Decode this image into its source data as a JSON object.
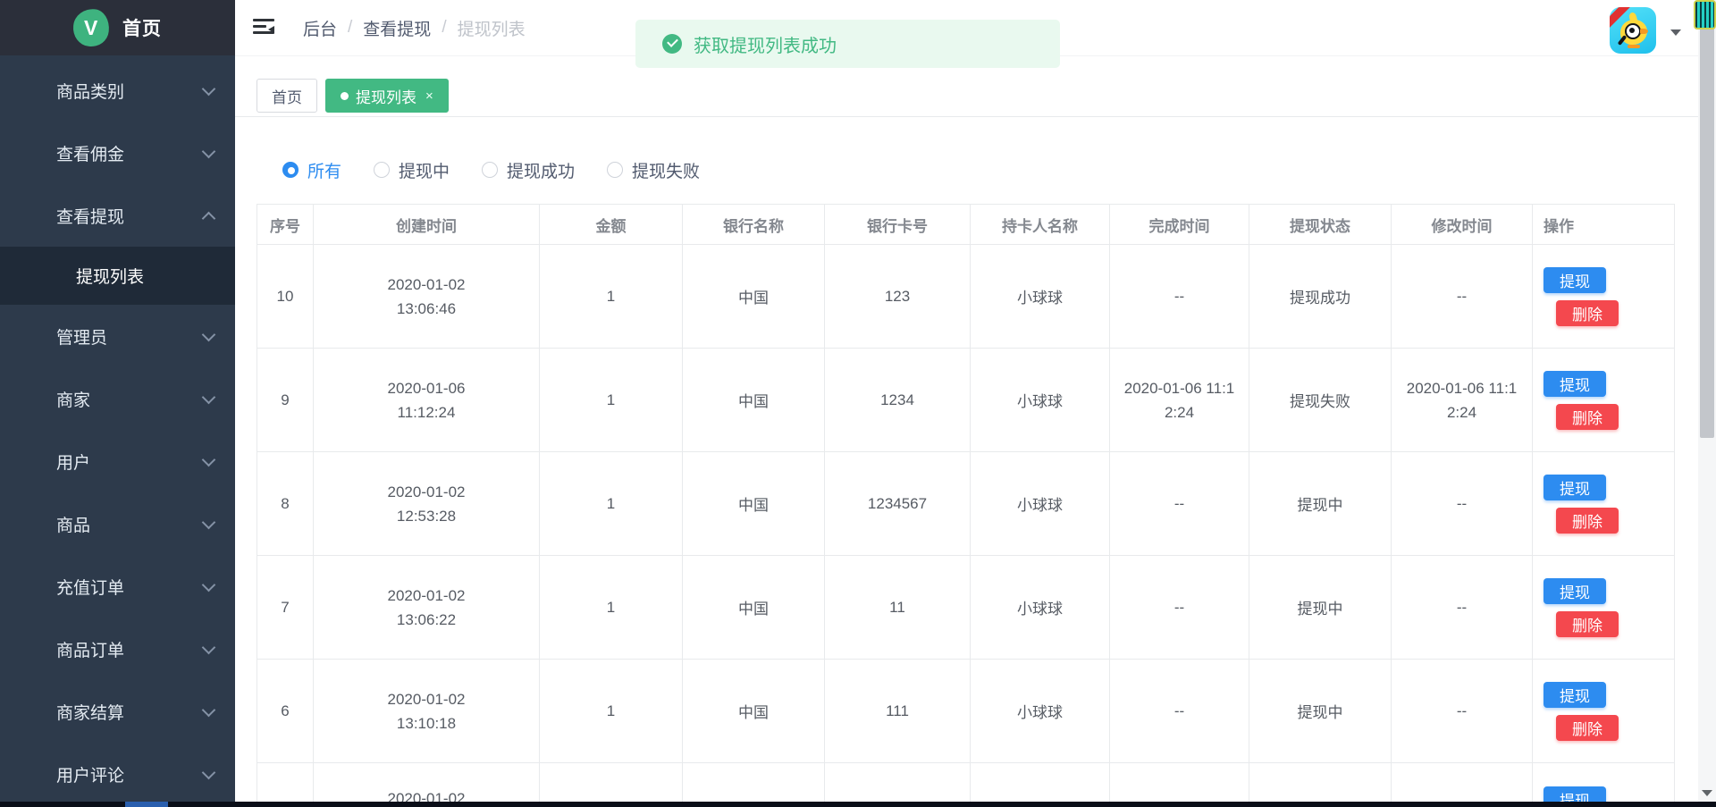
{
  "sidebar": {
    "logo_letter": "V",
    "logo_text": "首页",
    "menu": [
      {
        "label": "商品类别"
      },
      {
        "label": "查看佣金"
      },
      {
        "label": "查看提现"
      },
      {
        "label": "管理员"
      },
      {
        "label": "商家"
      },
      {
        "label": "用户"
      },
      {
        "label": "商品"
      },
      {
        "label": "充值订单"
      },
      {
        "label": "商品订单"
      },
      {
        "label": "商家结算"
      },
      {
        "label": "用户评论"
      }
    ],
    "active_submenu": "提现列表"
  },
  "header": {
    "breadcrumb": [
      "后台",
      "查看提现",
      "提现列表"
    ],
    "separator": "/"
  },
  "alert": {
    "message": "获取提现列表成功"
  },
  "tabs": [
    {
      "label": "首页",
      "active": false
    },
    {
      "label": "提现列表",
      "active": true,
      "close_glyph": "×"
    }
  ],
  "filters": [
    {
      "label": "所有",
      "selected": true
    },
    {
      "label": "提现中",
      "selected": false
    },
    {
      "label": "提现成功",
      "selected": false
    },
    {
      "label": "提现失败",
      "selected": false
    }
  ],
  "table": {
    "columns": [
      "序号",
      "创建时间",
      "金额",
      "银行名称",
      "银行卡号",
      "持卡人名称",
      "完成时间",
      "提现状态",
      "修改时间",
      "操作"
    ],
    "withdraw_label": "提现",
    "delete_label": "删除",
    "rows": [
      {
        "num": "10",
        "date": "2020-01-02",
        "time": "13:06:46",
        "amount": "1",
        "bank": "中国",
        "card": "123",
        "holder": "小球球",
        "finish": "--",
        "status": "提现成功",
        "modify": "--"
      },
      {
        "num": "9",
        "date": "2020-01-06",
        "time": "11:12:24",
        "amount": "1",
        "bank": "中国",
        "card": "1234",
        "holder": "小球球",
        "finish": "2020-01-06 11:12:24",
        "status": "提现失败",
        "modify": "2020-01-06 11:12:24"
      },
      {
        "num": "8",
        "date": "2020-01-02",
        "time": "12:53:28",
        "amount": "1",
        "bank": "中国",
        "card": "1234567",
        "holder": "小球球",
        "finish": "--",
        "status": "提现中",
        "modify": "--"
      },
      {
        "num": "7",
        "date": "2020-01-02",
        "time": "13:06:22",
        "amount": "1",
        "bank": "中国",
        "card": "11",
        "holder": "小球球",
        "finish": "--",
        "status": "提现中",
        "modify": "--"
      },
      {
        "num": "6",
        "date": "2020-01-02",
        "time": "13:10:18",
        "amount": "1",
        "bank": "中国",
        "card": "111",
        "holder": "小球球",
        "finish": "--",
        "status": "提现中",
        "modify": "--"
      },
      {
        "num": "",
        "date": "2020-01-02",
        "time": "",
        "amount": "",
        "bank": "",
        "card": "",
        "holder": "",
        "finish": "",
        "status": "",
        "modify": "",
        "partial": true
      }
    ]
  },
  "colors": {
    "sidebar_bg": "#2d3a4b",
    "sidebar_header_bg": "#2b2f3a",
    "active_submenu_bg": "#1f2a38",
    "success_green": "#42b983",
    "alert_bg": "#e9f9ef",
    "primary_blue": "#2d8cf0",
    "danger_red": "#f4484e",
    "table_border": "#e8eaec"
  }
}
